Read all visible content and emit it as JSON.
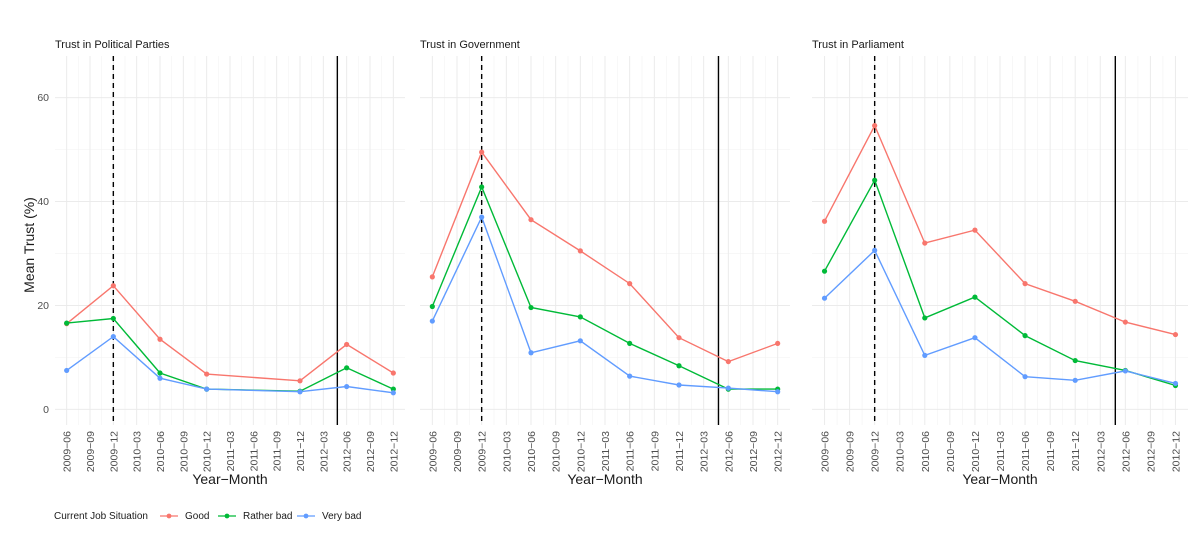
{
  "chart_data": {
    "type": "line",
    "ylabel": "Mean Trust (%)",
    "xlabel": "Year−Month",
    "ylim": [
      -3,
      68
    ],
    "yticks": [
      0,
      20,
      40,
      60
    ],
    "x_ticks": [
      "2009−06",
      "2009−09",
      "2009−12",
      "2010−03",
      "2010−06",
      "2010−09",
      "2010−12",
      "2011−03",
      "2011−06",
      "2011−09",
      "2011−12",
      "2012−03",
      "2012−06",
      "2012−09",
      "2012−12"
    ],
    "x_range": [
      -0.5,
      14.5
    ],
    "vlines": [
      {
        "x": 2,
        "style": "dashed"
      },
      {
        "x": 11.6,
        "style": "solid"
      }
    ],
    "legend": {
      "title": "Current Job Situation",
      "position": "bottom-left",
      "items": [
        {
          "label": "Good",
          "color": "#F8766D"
        },
        {
          "label": "Rather bad",
          "color": "#00BA38"
        },
        {
          "label": "Very bad",
          "color": "#619CFF"
        }
      ]
    },
    "panels": [
      {
        "title": "Trust in Political Parties",
        "series": [
          {
            "name": "Good",
            "color": "#F8766D",
            "x": [
              0,
              2,
              4,
              6,
              10,
              12,
              14
            ],
            "values": [
              16.5,
              23.8,
              13.5,
              6.8,
              5.5,
              12.5,
              7.0
            ]
          },
          {
            "name": "Rather bad",
            "color": "#00BA38",
            "x": [
              0,
              2,
              4,
              6,
              10,
              12,
              14
            ],
            "values": [
              16.6,
              17.5,
              7.0,
              3.9,
              3.5,
              8.0,
              3.9
            ]
          },
          {
            "name": "Very bad",
            "color": "#619CFF",
            "x": [
              0,
              2,
              4,
              6,
              10,
              12,
              14
            ],
            "values": [
              7.5,
              14.0,
              6.0,
              3.9,
              3.4,
              4.4,
              3.2
            ]
          }
        ]
      },
      {
        "title": "Trust in Government",
        "series": [
          {
            "name": "Good",
            "color": "#F8766D",
            "x": [
              0,
              2,
              4,
              6,
              8,
              10,
              12,
              14
            ],
            "values": [
              25.5,
              49.5,
              36.5,
              30.5,
              24.2,
              13.8,
              9.2,
              12.7
            ]
          },
          {
            "name": "Rather bad",
            "color": "#00BA38",
            "x": [
              0,
              2,
              4,
              6,
              8,
              10,
              12,
              14
            ],
            "values": [
              19.8,
              42.8,
              19.6,
              17.8,
              12.7,
              8.4,
              3.9,
              3.9
            ]
          },
          {
            "name": "Very bad",
            "color": "#619CFF",
            "x": [
              0,
              2,
              4,
              6,
              8,
              10,
              12,
              14
            ],
            "values": [
              17.0,
              37.0,
              10.9,
              13.2,
              6.4,
              4.7,
              4.1,
              3.4
            ]
          }
        ]
      },
      {
        "title": "Trust in Parliament",
        "series": [
          {
            "name": "Good",
            "color": "#F8766D",
            "x": [
              0,
              2,
              4,
              6,
              8,
              10,
              12,
              14
            ],
            "values": [
              36.2,
              54.6,
              32.0,
              34.5,
              24.2,
              20.8,
              16.8,
              14.4
            ]
          },
          {
            "name": "Rather bad",
            "color": "#00BA38",
            "x": [
              0,
              2,
              4,
              6,
              8,
              10,
              12,
              14
            ],
            "values": [
              26.6,
              44.1,
              17.6,
              21.6,
              14.2,
              9.4,
              7.5,
              4.6
            ]
          },
          {
            "name": "Very bad",
            "color": "#619CFF",
            "x": [
              0,
              2,
              4,
              6,
              8,
              10,
              12,
              14
            ],
            "values": [
              21.4,
              30.6,
              10.4,
              13.8,
              6.3,
              5.6,
              7.4,
              5.0
            ]
          }
        ]
      }
    ]
  }
}
